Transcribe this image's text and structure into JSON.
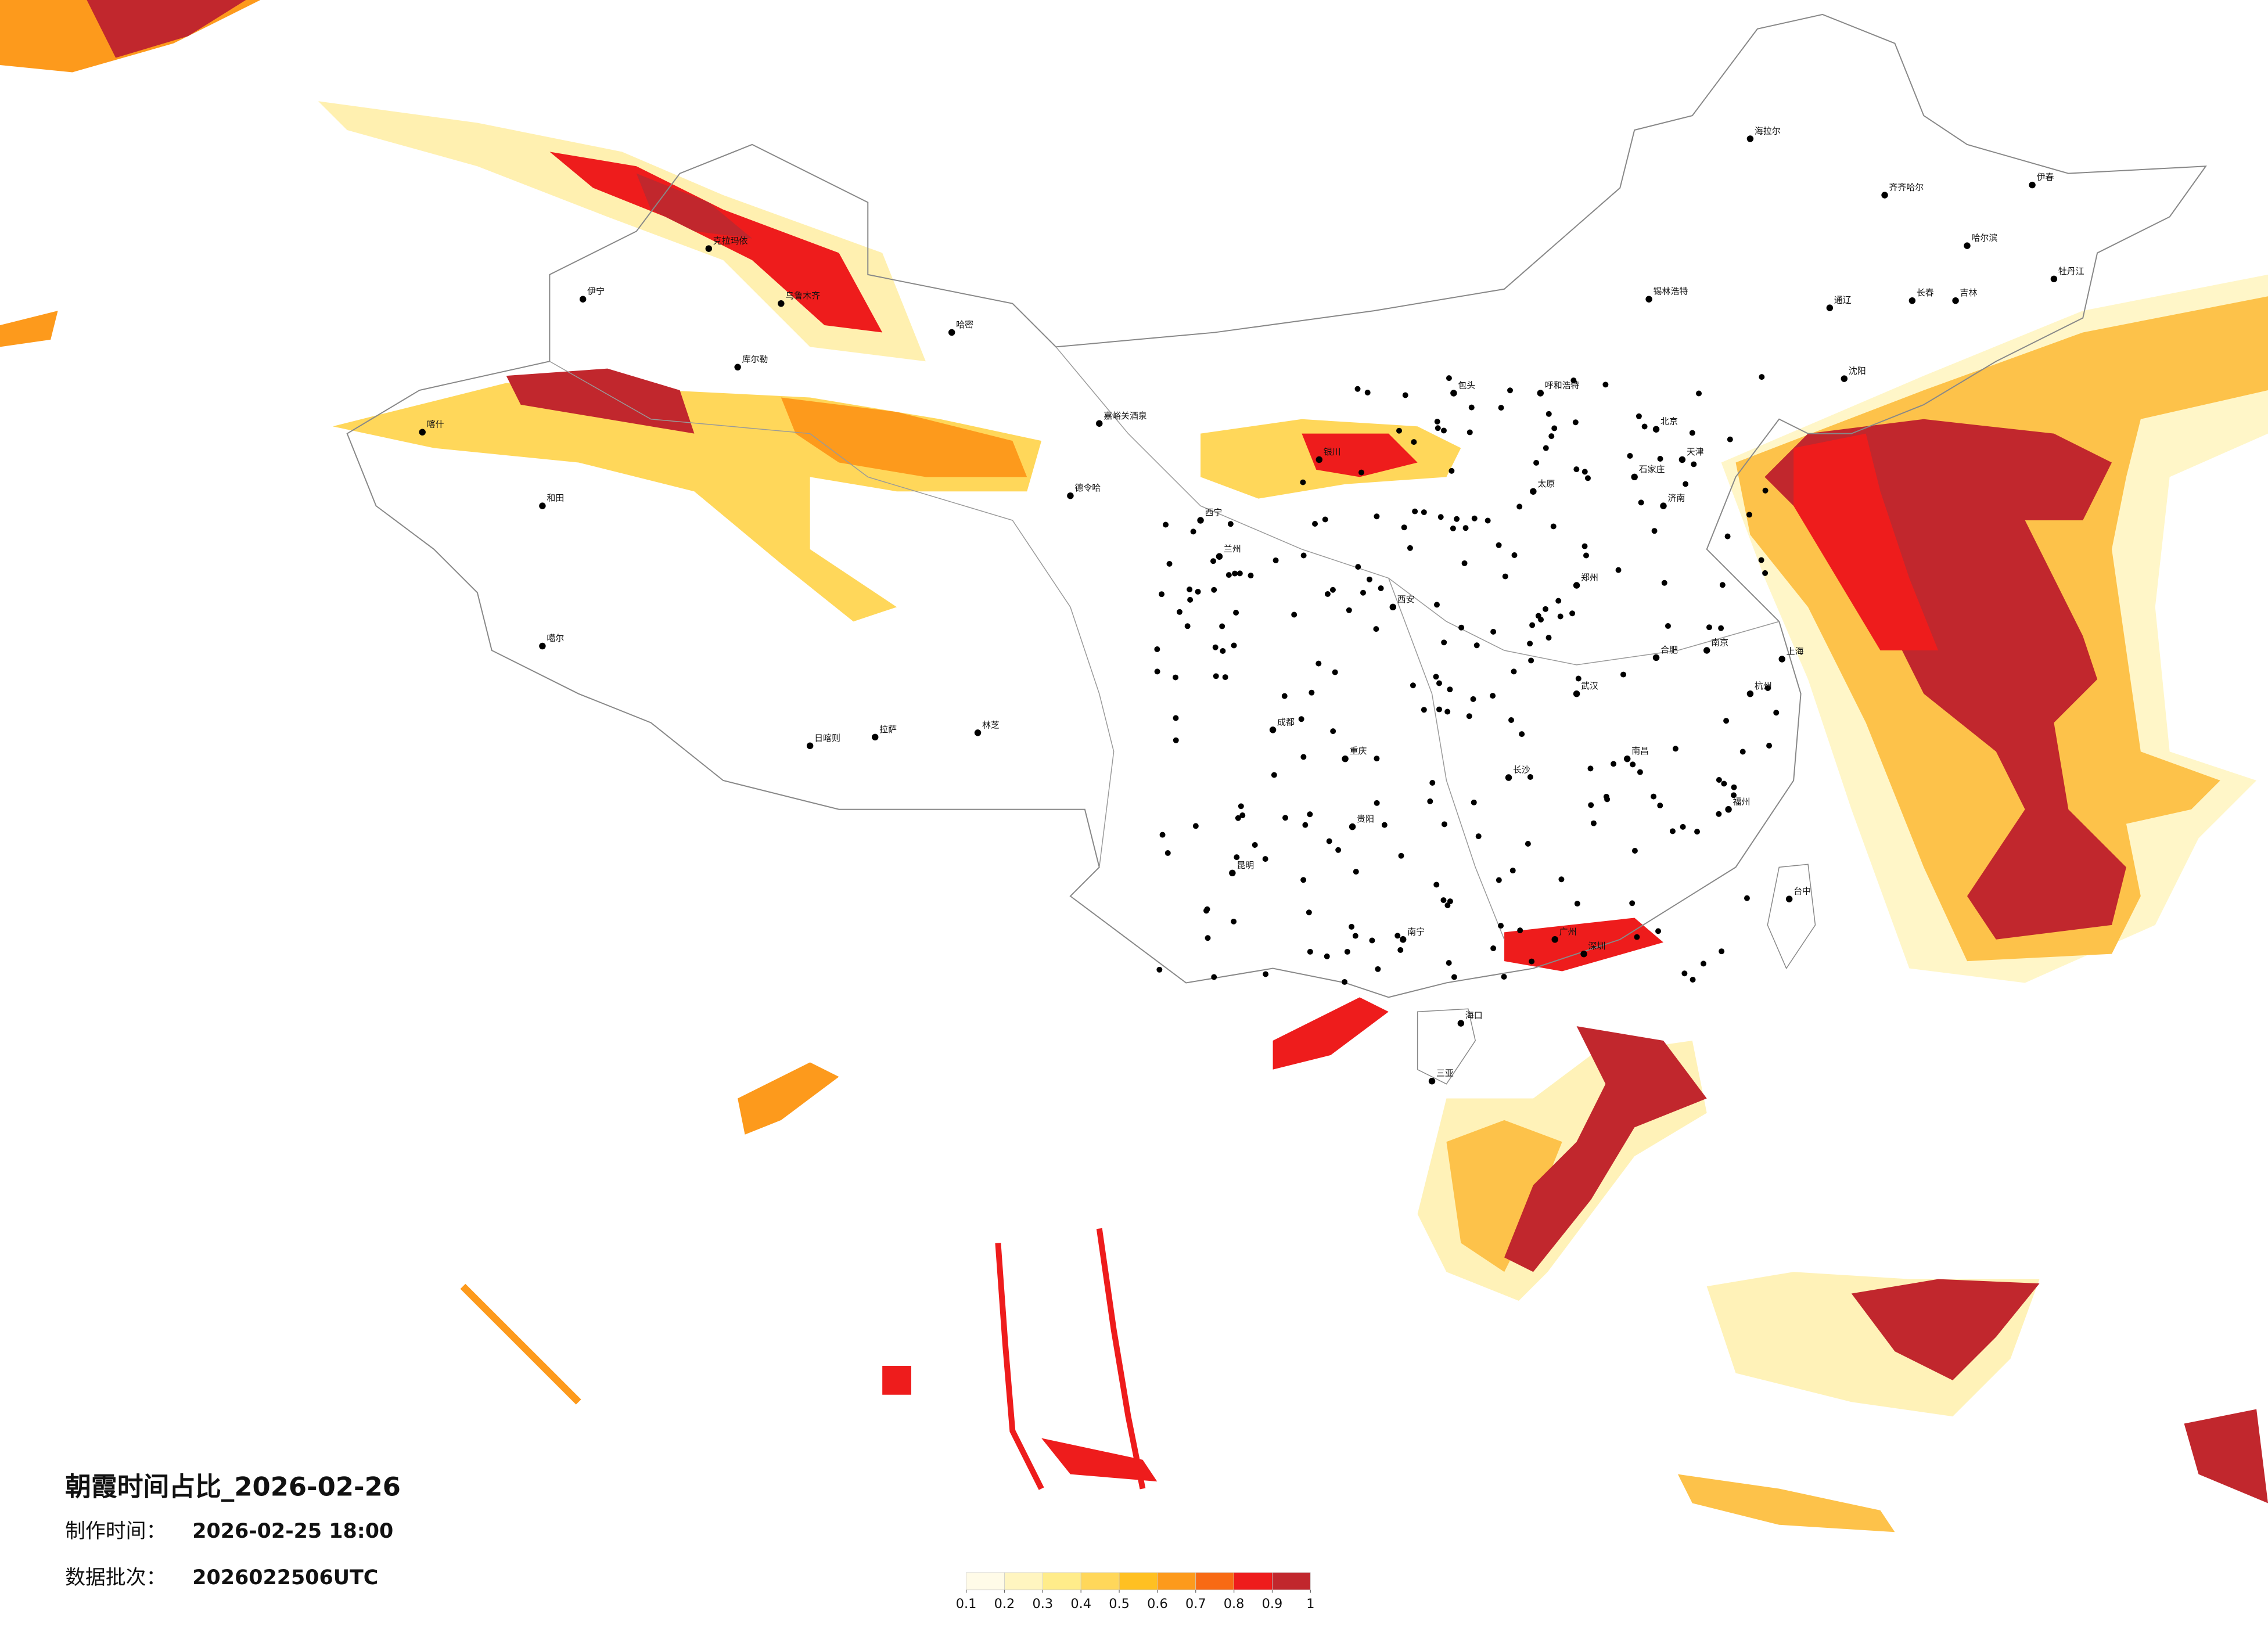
{
  "title": "朝霞时间占比_2026-02-26",
  "info": [
    {
      "label": "制作时间：",
      "value": "2026-02-25 18:00"
    },
    {
      "label": "数据批次：",
      "value": "2026022506UTC"
    }
  ],
  "legend": {
    "colors": [
      "#fffbe8",
      "#fff5c0",
      "#ffec8a",
      "#ffd75a",
      "#ffc022",
      "#fd9a1c",
      "#f86a14",
      "#ee1c1c",
      "#c1272d"
    ],
    "ticks": [
      0.1,
      0.2,
      0.3,
      0.4,
      0.5,
      0.6,
      0.7,
      0.8,
      0.9,
      1
    ]
  },
  "cities": [
    "北京",
    "天津",
    "上海",
    "广州",
    "深圳",
    "海口",
    "三亚",
    "哈尔滨",
    "齐齐哈尔",
    "长春",
    "吉林",
    "沈阳",
    "呼和浩特",
    "锡林浩特",
    "海拉尔",
    "乌鲁木齐",
    "克拉玛依",
    "伊宁",
    "喀什",
    "和田",
    "哈密",
    "库尔勒",
    "嘉峪关酒泉",
    "德令哈",
    "西宁",
    "兰州",
    "拉萨",
    "日喀则",
    "林芝",
    "噶尔",
    "成都",
    "重庆",
    "昆明",
    "贵阳",
    "南宁",
    "长沙",
    "武汉",
    "南昌",
    "福州",
    "台中",
    "西安",
    "郑州",
    "济南",
    "石家庄",
    "太原",
    "银川",
    "包头",
    "杭州",
    "南京",
    "合肥",
    "伊春",
    "牡丹江",
    "通辽"
  ]
}
